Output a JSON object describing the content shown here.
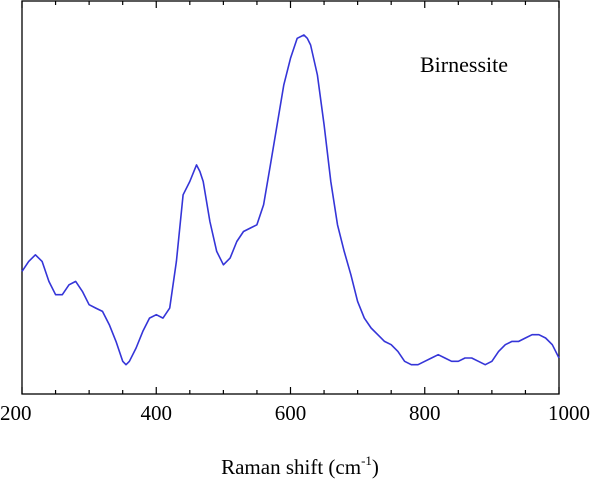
{
  "chart_data": {
    "type": "line",
    "title": "",
    "xlabel": "Raman shift (cm",
    "xlabel_sup": "-1",
    "xlabel_close": ")",
    "ylabel": "",
    "xlim": [
      200,
      1000
    ],
    "ylim": [
      0,
      1
    ],
    "grid": false,
    "y_ticks_shown": false,
    "x_ticks": [
      200,
      400,
      600,
      800,
      1000
    ],
    "x_tick_labels": [
      "200",
      "400",
      "600",
      "800",
      "1000"
    ],
    "annotation": "Birnessite",
    "colors": {
      "line": "#3535d8",
      "axis": "#000000"
    },
    "series": [
      {
        "x": [
          200,
          210,
          220,
          230,
          240,
          250,
          260,
          270,
          280,
          290,
          300,
          310,
          320,
          330,
          340,
          350,
          355,
          360,
          370,
          380,
          390,
          400,
          410,
          420,
          430,
          440,
          450,
          460,
          465,
          470,
          480,
          490,
          500,
          510,
          520,
          530,
          540,
          550,
          560,
          570,
          580,
          590,
          600,
          610,
          620,
          625,
          630,
          640,
          650,
          660,
          670,
          680,
          690,
          700,
          710,
          720,
          730,
          740,
          750,
          760,
          770,
          780,
          790,
          800,
          810,
          820,
          830,
          840,
          850,
          860,
          870,
          880,
          890,
          900,
          910,
          920,
          930,
          940,
          950,
          960,
          970,
          980,
          990,
          1000
        ],
        "y": [
          0.29,
          0.32,
          0.34,
          0.32,
          0.26,
          0.22,
          0.22,
          0.25,
          0.26,
          0.23,
          0.19,
          0.18,
          0.17,
          0.13,
          0.08,
          0.02,
          0.01,
          0.02,
          0.06,
          0.11,
          0.15,
          0.16,
          0.15,
          0.18,
          0.32,
          0.52,
          0.56,
          0.61,
          0.59,
          0.56,
          0.44,
          0.35,
          0.31,
          0.33,
          0.38,
          0.41,
          0.42,
          0.43,
          0.49,
          0.61,
          0.73,
          0.85,
          0.93,
          0.99,
          1.0,
          0.99,
          0.97,
          0.88,
          0.73,
          0.56,
          0.43,
          0.35,
          0.28,
          0.2,
          0.15,
          0.12,
          0.1,
          0.08,
          0.07,
          0.05,
          0.02,
          0.01,
          0.01,
          0.02,
          0.03,
          0.04,
          0.03,
          0.02,
          0.02,
          0.03,
          0.03,
          0.02,
          0.01,
          0.02,
          0.05,
          0.07,
          0.08,
          0.08,
          0.09,
          0.1,
          0.1,
          0.09,
          0.07,
          0.03
        ]
      }
    ]
  }
}
